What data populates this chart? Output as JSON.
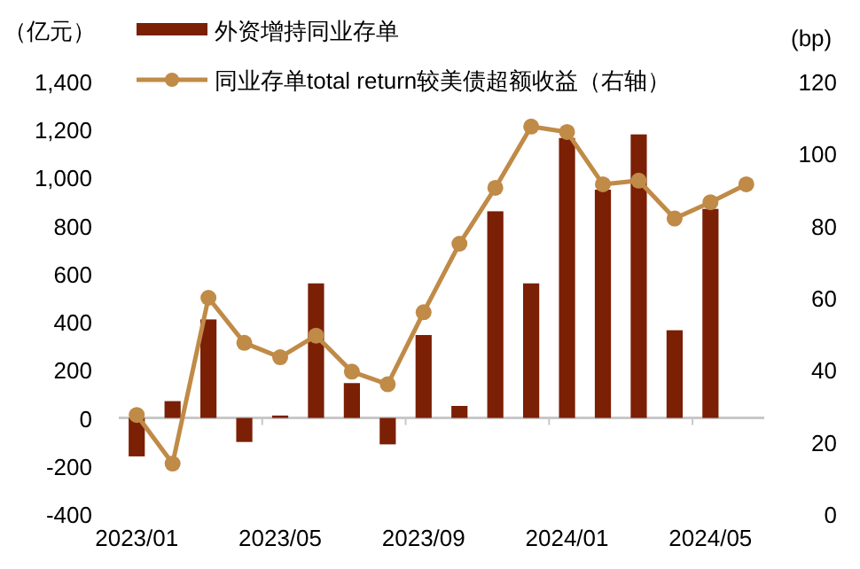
{
  "chart_data": {
    "type": "bar",
    "ylabel": "（亿元）",
    "y2label": "(bp)",
    "categories": [
      "2023/01",
      null,
      null,
      null,
      "2023/05",
      null,
      null,
      null,
      "2023/09",
      null,
      null,
      null,
      "2024/01",
      null,
      null,
      null,
      "2024/05",
      null
    ],
    "series": [
      {
        "name": "外资增持同业存单",
        "color": "#7b1f05",
        "values": [
          -160,
          70,
          410,
          -100,
          10,
          560,
          145,
          -110,
          345,
          50,
          860,
          560,
          1165,
          950,
          1180,
          365,
          870,
          null
        ]
      },
      {
        "name": "同业存单total return较美债超额收益（右轴）",
        "type": "line",
        "axis": "y2",
        "color": "#c08a47",
        "marker": "circle",
        "values": [
          27.5,
          14,
          60,
          47.5,
          43.5,
          49.5,
          39.5,
          36,
          56,
          75,
          90.5,
          107.5,
          106,
          91.5,
          92.5,
          82,
          86.5,
          91.5
        ]
      }
    ],
    "ylim": [
      -400,
      1400
    ],
    "yticks": [
      {
        "value": -400,
        "label": "-400"
      },
      {
        "value": -200,
        "label": "-200"
      },
      {
        "value": 0,
        "label": "0"
      },
      {
        "value": 200,
        "label": "200"
      },
      {
        "value": 400,
        "label": "400"
      },
      {
        "value": 600,
        "label": "600"
      },
      {
        "value": 800,
        "label": "800"
      },
      {
        "value": 1000,
        "label": "1,000"
      },
      {
        "value": 1200,
        "label": "1,200"
      },
      {
        "value": 1400,
        "label": "1,400"
      }
    ],
    "y2lim": [
      0,
      120
    ],
    "y2ticks": [
      0,
      20,
      40,
      60,
      80,
      100,
      120
    ],
    "legend": "top"
  }
}
